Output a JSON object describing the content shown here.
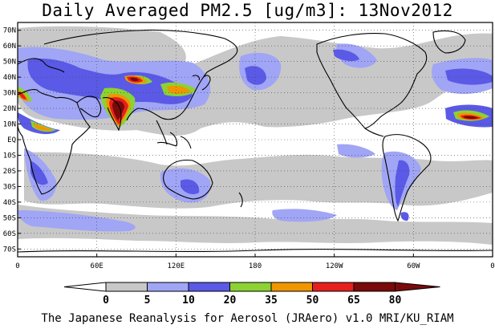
{
  "title": "Daily Averaged PM2.5 [ug/m3]: 13Nov2012",
  "caption": "The Japanese Reanalysis for Aerosol (JRAero) v1.0 MRI/KU_RIAM",
  "map": {
    "projection": "equirectangular",
    "lon_range": [
      0,
      360
    ],
    "lat_range": [
      -75,
      75
    ],
    "gridlines": "dotted",
    "lat_ticks": [
      "70N",
      "60N",
      "50N",
      "40N",
      "30N",
      "20N",
      "10N",
      "EQ",
      "10S",
      "20S",
      "30S",
      "40S",
      "50S",
      "60S",
      "70S"
    ],
    "lon_ticks": [
      "0",
      "60E",
      "120E",
      "180",
      "120W",
      "60W",
      "0"
    ]
  },
  "colorbar": {
    "levels": [
      "0",
      "5",
      "10",
      "20",
      "35",
      "50",
      "65",
      "80"
    ],
    "colors": [
      "#ffffff",
      "#c8c8c8",
      "#a0a5f5",
      "#5a5ae6",
      "#8cd232",
      "#f09600",
      "#e61e1e",
      "#7a0a0a"
    ]
  }
}
